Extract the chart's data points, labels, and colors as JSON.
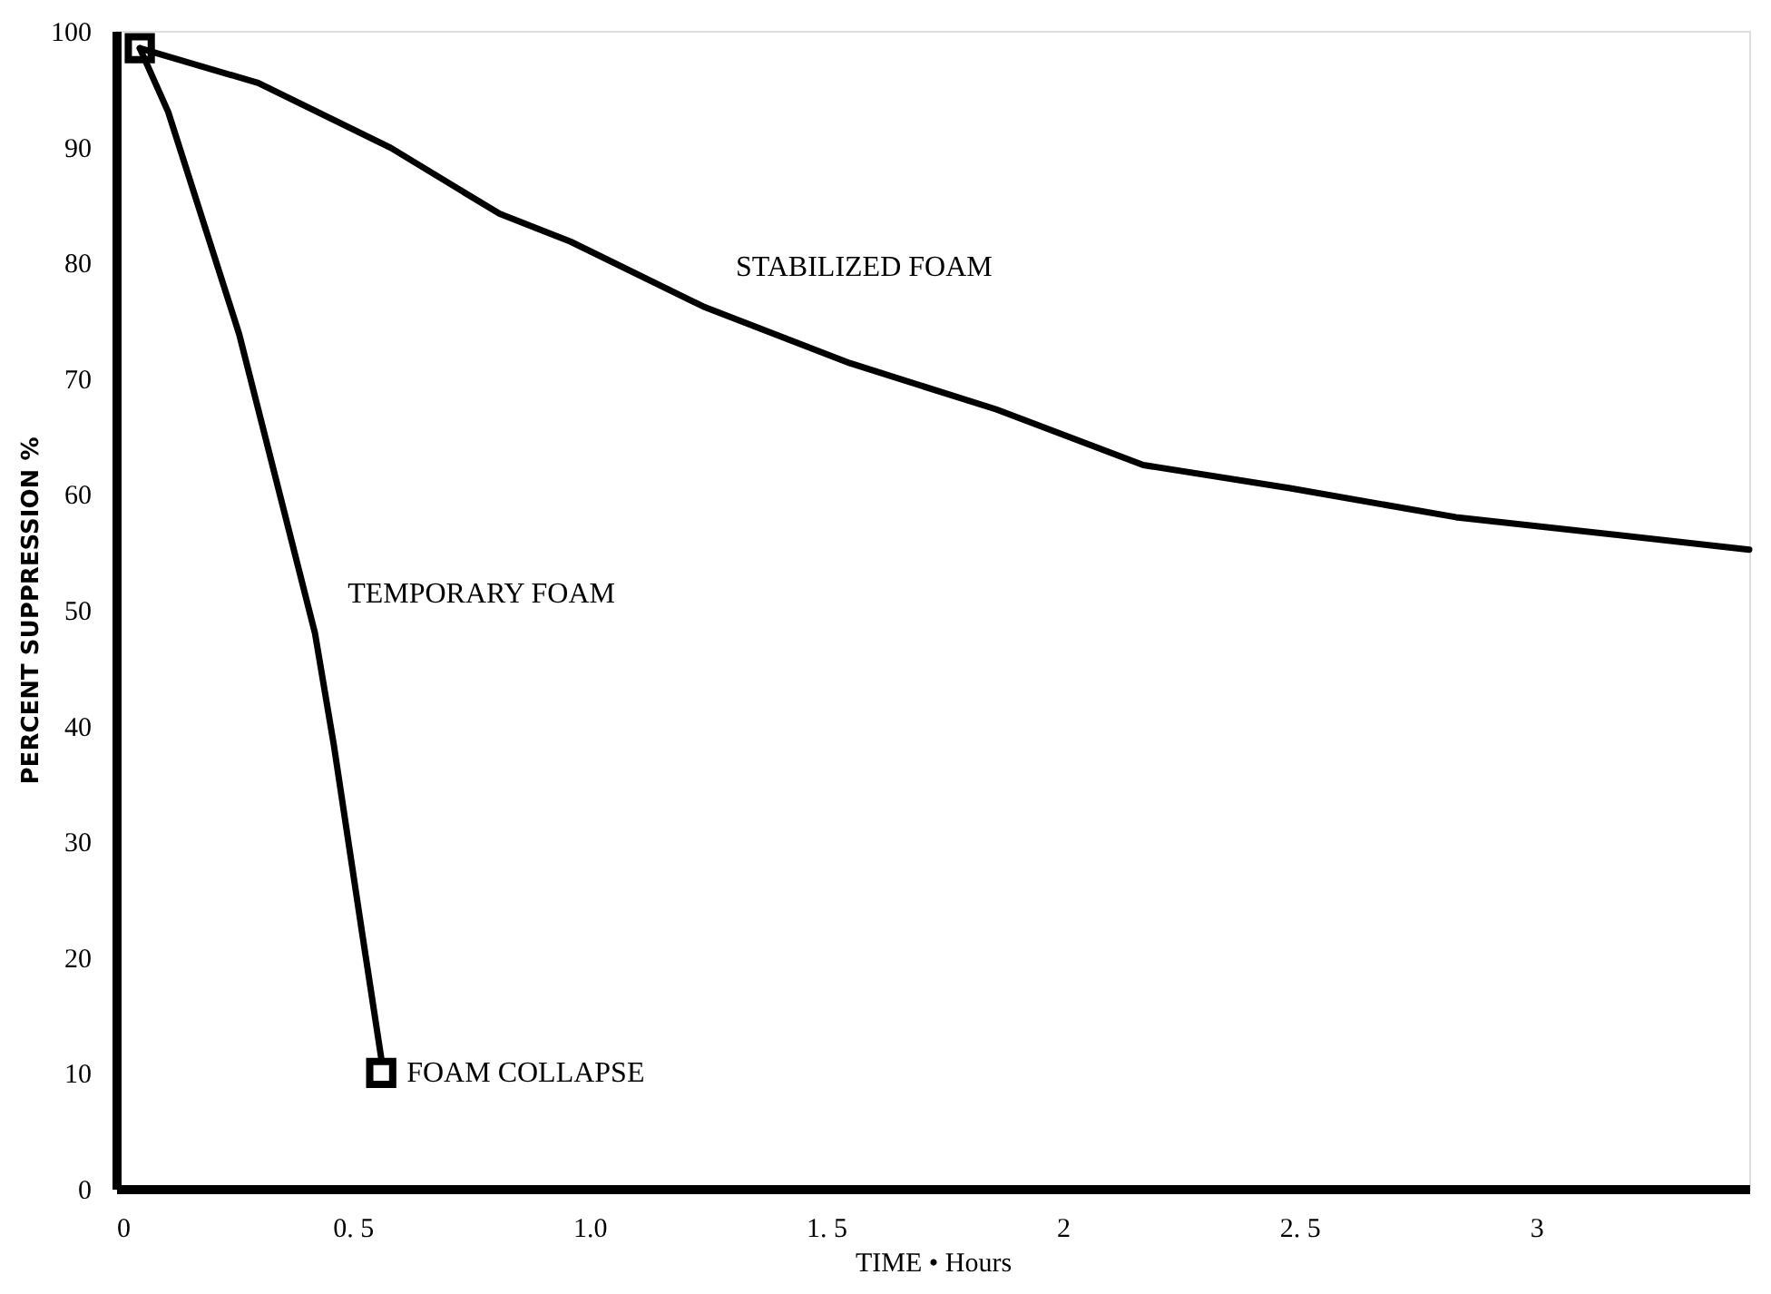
{
  "chart_data": {
    "type": "line",
    "xlabel": "TIME • Hours",
    "ylabel": "PERCENT SUPPRESSION %",
    "xlim": [
      0,
      3.45
    ],
    "xticks": [
      0,
      {
        "value": 0.5,
        "label": "0. 5"
      },
      {
        "value": 1,
        "label": "1.0"
      },
      {
        "value": 1.5,
        "label": "1. 5"
      },
      2,
      {
        "value": 2.5,
        "label": "2. 5"
      },
      3
    ],
    "ylim": [
      0,
      100
    ],
    "yticks": [
      0,
      10,
      20,
      30,
      40,
      50,
      60,
      70,
      80,
      90,
      100
    ],
    "grid": false,
    "line_style": "solid",
    "marker": "none",
    "series": [
      {
        "name": "STABILIZED FOAM",
        "color": "#000000",
        "x": [
          0.05,
          0.3,
          0.58,
          0.81,
          0.96,
          1.24,
          1.55,
          1.86,
          2.17,
          2.48,
          2.83,
          3.45
        ],
        "values": [
          98.5,
          95.5,
          89.9,
          84.2,
          81.8,
          76.2,
          71.3,
          67.3,
          62.5,
          60.5,
          58,
          55.2
        ]
      },
      {
        "name": "TEMPORARY FOAM",
        "color": "#000000",
        "x": [
          0.05,
          0.11,
          0.26,
          0.42,
          0.46,
          0.52,
          0.56
        ],
        "values": [
          98.5,
          93,
          73.8,
          48,
          38.3,
          22,
          11.3
        ]
      },
      {
        "type": "scatter",
        "marker": "square",
        "color": "#000000",
        "x": [
          0.05,
          0.56
        ],
        "values": [
          98.5,
          10
        ]
      }
    ],
    "annotations": [
      {
        "text": "FOAM COLLAPSE",
        "x": 0.56,
        "y": 10
      }
    ]
  }
}
